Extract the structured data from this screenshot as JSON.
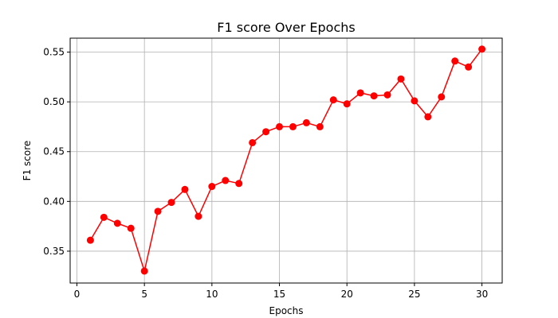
{
  "chart_data": {
    "type": "line",
    "title": "F1 score Over Epochs",
    "xlabel": "Epochs",
    "ylabel": "F1 score",
    "xlim": [
      -0.5,
      31.5
    ],
    "ylim": [
      0.318,
      0.564
    ],
    "xticks": [
      0,
      5,
      10,
      15,
      20,
      25,
      30
    ],
    "yticks": [
      0.35,
      0.4,
      0.45,
      0.5,
      0.55
    ],
    "grid": true,
    "series": [
      {
        "color": "#ff0000",
        "marker": "circle",
        "x": [
          1,
          2,
          3,
          4,
          5,
          6,
          7,
          8,
          9,
          10,
          11,
          12,
          13,
          14,
          15,
          16,
          17,
          18,
          19,
          20,
          21,
          22,
          23,
          24,
          25,
          26,
          27,
          28,
          29,
          30
        ],
        "y": [
          0.361,
          0.384,
          0.378,
          0.373,
          0.33,
          0.39,
          0.399,
          0.412,
          0.385,
          0.415,
          0.421,
          0.418,
          0.459,
          0.47,
          0.475,
          0.475,
          0.479,
          0.475,
          0.502,
          0.498,
          0.509,
          0.506,
          0.507,
          0.523,
          0.501,
          0.485,
          0.505,
          0.541,
          0.535,
          0.553
        ]
      }
    ]
  }
}
